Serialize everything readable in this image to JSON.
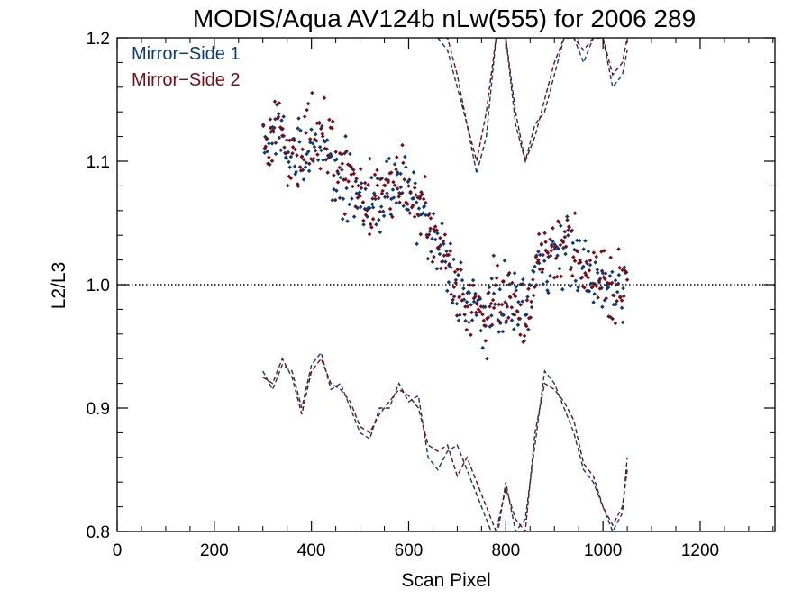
{
  "chart_data": {
    "type": "scatter",
    "title": "MODIS/Aqua AV124b nLw(555) for 2006 289",
    "xlabel": "Scan Pixel",
    "ylabel": "L2/L3",
    "xlim": [
      0,
      1354
    ],
    "ylim": [
      0.8,
      1.2
    ],
    "x_ticks": [
      0,
      200,
      400,
      600,
      800,
      1000,
      1200
    ],
    "x_tick_labels": [
      "0",
      "200",
      "400",
      "600",
      "800",
      "1000",
      "1200"
    ],
    "y_ticks": [
      0.8,
      0.9,
      1.0,
      1.1,
      1.2
    ],
    "y_tick_labels": [
      "0.8",
      "0.9",
      "1.0",
      "1.1",
      "1.2"
    ],
    "reference_line": {
      "y": 1.0,
      "style": "dotted"
    },
    "grid": false,
    "legend_position": "top-left",
    "series": [
      {
        "name": "Mirror−Side 1",
        "color": "#0a3a7a",
        "mean_x": [
          300,
          330,
          360,
          390,
          420,
          450,
          480,
          510,
          540,
          570,
          600,
          630,
          660,
          690,
          720,
          750,
          780,
          810,
          840,
          870,
          900,
          930,
          960,
          990,
          1020,
          1050
        ],
        "mean_y": [
          1.11,
          1.125,
          1.1,
          1.11,
          1.12,
          1.085,
          1.08,
          1.065,
          1.07,
          1.075,
          1.08,
          1.05,
          1.03,
          1.005,
          0.99,
          0.975,
          0.985,
          0.99,
          0.98,
          1.02,
          1.025,
          1.03,
          1.015,
          1.0,
          0.99,
          1.0
        ],
        "upper_x": [
          660,
          680,
          700,
          720,
          740,
          760,
          780,
          800,
          820,
          840,
          860,
          880,
          900,
          920,
          940,
          960,
          980,
          1000,
          1020,
          1040,
          1050
        ],
        "upper_y": [
          1.2,
          1.19,
          1.16,
          1.13,
          1.09,
          1.12,
          1.2,
          1.2,
          1.13,
          1.1,
          1.13,
          1.14,
          1.17,
          1.2,
          1.2,
          1.18,
          1.2,
          1.2,
          1.16,
          1.17,
          1.19
        ],
        "lower_x": [
          300,
          320,
          340,
          360,
          380,
          400,
          420,
          440,
          460,
          480,
          500,
          520,
          540,
          560,
          580,
          600,
          620,
          640,
          660,
          680,
          700,
          720,
          740,
          760,
          780,
          800,
          820,
          840,
          860,
          880,
          900,
          920,
          940,
          960,
          980,
          1000,
          1020,
          1040,
          1050
        ],
        "lower_y": [
          0.93,
          0.915,
          0.935,
          0.93,
          0.9,
          0.935,
          0.945,
          0.915,
          0.92,
          0.9,
          0.88,
          0.875,
          0.9,
          0.9,
          0.92,
          0.905,
          0.91,
          0.86,
          0.85,
          0.865,
          0.87,
          0.85,
          0.83,
          0.81,
          0.79,
          0.84,
          0.8,
          0.81,
          0.87,
          0.93,
          0.92,
          0.9,
          0.88,
          0.85,
          0.84,
          0.82,
          0.8,
          0.815,
          0.86
        ]
      },
      {
        "name": "Mirror−Side 2",
        "color": "#7a0a14",
        "mean_x": [
          300,
          330,
          360,
          390,
          420,
          450,
          480,
          510,
          540,
          570,
          600,
          630,
          660,
          690,
          720,
          750,
          780,
          810,
          840,
          870,
          900,
          930,
          960,
          990,
          1020,
          1050
        ],
        "mean_y": [
          1.12,
          1.13,
          1.1,
          1.115,
          1.12,
          1.09,
          1.085,
          1.07,
          1.075,
          1.08,
          1.085,
          1.055,
          1.035,
          1.01,
          0.985,
          0.98,
          0.99,
          0.985,
          0.975,
          1.02,
          1.03,
          1.035,
          1.02,
          1.005,
          0.995,
          1.005
        ],
        "upper_x": [
          660,
          680,
          700,
          720,
          740,
          760,
          780,
          800,
          820,
          840,
          860,
          880,
          900,
          920,
          940,
          960,
          980,
          1000,
          1020,
          1040,
          1050
        ],
        "upper_y": [
          1.2,
          1.2,
          1.17,
          1.13,
          1.1,
          1.14,
          1.2,
          1.2,
          1.14,
          1.1,
          1.12,
          1.15,
          1.18,
          1.2,
          1.2,
          1.19,
          1.2,
          1.2,
          1.17,
          1.18,
          1.2
        ],
        "lower_x": [
          300,
          320,
          340,
          360,
          380,
          400,
          420,
          440,
          460,
          480,
          500,
          520,
          540,
          560,
          580,
          600,
          620,
          640,
          660,
          680,
          700,
          720,
          740,
          760,
          780,
          800,
          820,
          840,
          860,
          880,
          900,
          920,
          940,
          960,
          980,
          1000,
          1020,
          1040,
          1050
        ],
        "lower_y": [
          0.925,
          0.92,
          0.94,
          0.925,
          0.895,
          0.93,
          0.94,
          0.92,
          0.915,
          0.905,
          0.885,
          0.88,
          0.895,
          0.905,
          0.915,
          0.91,
          0.9,
          0.87,
          0.865,
          0.87,
          0.845,
          0.86,
          0.84,
          0.82,
          0.8,
          0.835,
          0.81,
          0.8,
          0.88,
          0.92,
          0.915,
          0.905,
          0.89,
          0.855,
          0.845,
          0.82,
          0.805,
          0.82,
          0.85
        ]
      }
    ]
  }
}
